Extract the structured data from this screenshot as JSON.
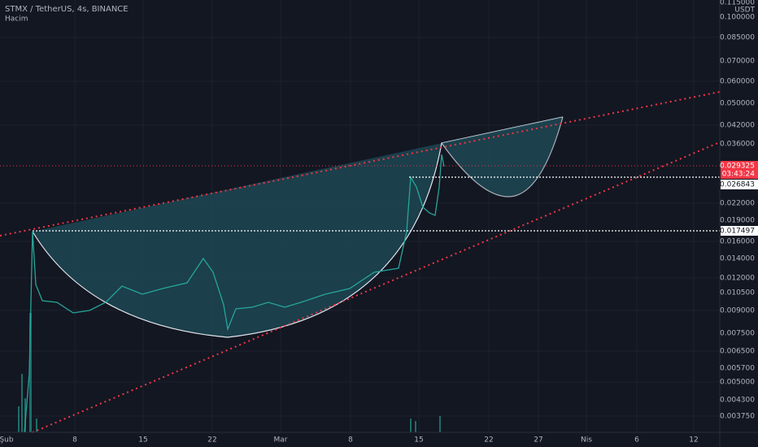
{
  "header": {
    "symbol": "STMX / TetherUS, 4s, BINANCE",
    "indicator": "Hacim"
  },
  "price_axis": {
    "currency": "USDT",
    "labels": [
      "0.115000",
      "0.100000",
      "0.085000",
      "0.070000",
      "0.060000",
      "0.050000",
      "0.042000",
      "0.036000",
      "0.022000",
      "0.019000",
      "0.016000",
      "0.014000",
      "0.012000",
      "0.010500",
      "0.009000",
      "0.007500",
      "0.006500",
      "0.005700",
      "0.005000",
      "0.004300",
      "0.003750"
    ]
  },
  "price_tags": {
    "last_price": "0.029325",
    "countdown": "03:43:24",
    "level_high": "0.026843",
    "level_low": "0.017497"
  },
  "time_axis": {
    "labels": [
      "Şub",
      "8",
      "15",
      "22",
      "Mar",
      "8",
      "15",
      "22",
      "27",
      "Nis",
      "6",
      "12"
    ]
  }
}
